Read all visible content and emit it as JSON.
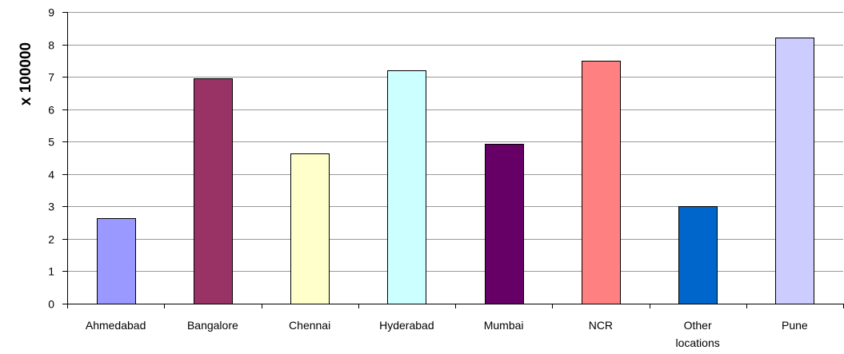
{
  "chart_data": {
    "type": "bar",
    "title": "",
    "xlabel": "",
    "ylabel": "x 100000",
    "ylim": [
      0,
      9
    ],
    "yticks": [
      0,
      1,
      2,
      3,
      4,
      5,
      6,
      7,
      8,
      9
    ],
    "grid": true,
    "legend": "none",
    "categories": [
      "Ahmedabad",
      "Bangalore",
      "Chennai",
      "Hyderabad",
      "Mumbai",
      "NCR",
      "Other locations",
      "Pune"
    ],
    "values": [
      2.65,
      6.95,
      4.63,
      7.2,
      4.93,
      7.5,
      3.0,
      8.2
    ],
    "colors": [
      "#9999ff",
      "#993366",
      "#ffffcc",
      "#ccffff",
      "#660066",
      "#ff8080",
      "#0066cc",
      "#ccccff"
    ]
  }
}
